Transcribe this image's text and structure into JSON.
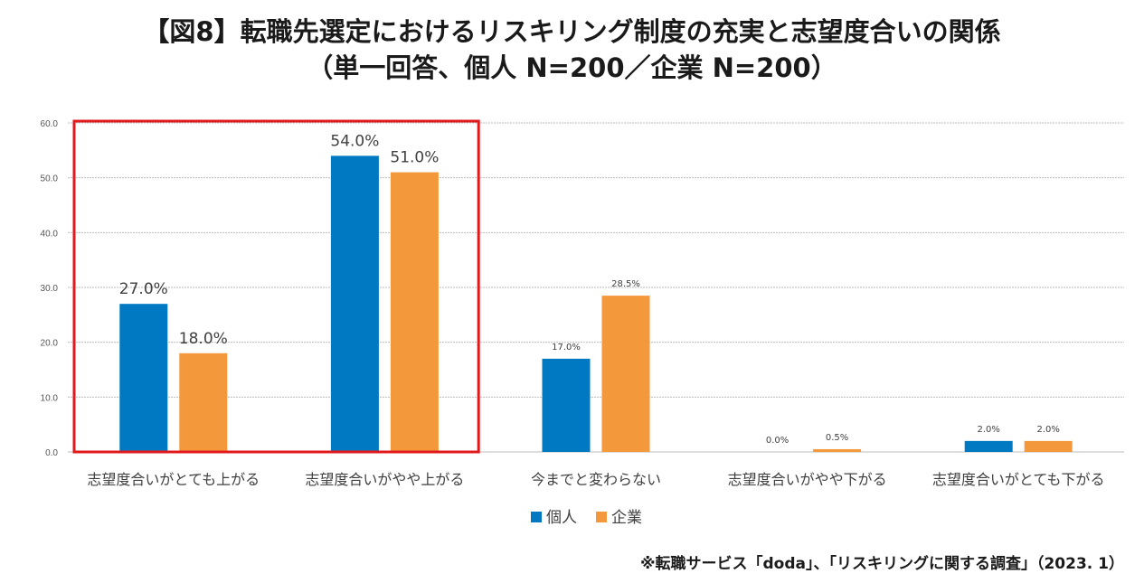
{
  "title_line1": "【図8】転職先選定におけるリスキリング制度の充実と志望度合いの関係",
  "title_line2": "（単一回答、個人 N=200／企業 N=200）",
  "source": "※転職サービス「doda」、「リスキリングに関する調査」（2023. 1）",
  "colors": {
    "individual": "#0079C2",
    "company": "#F4993B",
    "highlight": "#E0191C",
    "grid": "#BDBDBD"
  },
  "chart_data": {
    "type": "bar",
    "categories": [
      "志望度合いがとても上がる",
      "志望度合いがやや上がる",
      "今までと変わらない",
      "志望度合いがやや下がる",
      "志望度合いがとても下がる"
    ],
    "series": [
      {
        "name": "個人",
        "values": [
          27.0,
          54.0,
          17.0,
          0.0,
          2.0
        ],
        "labels": [
          "27.0%",
          "54.0%",
          "17.0%",
          "0.0%",
          "2.0%"
        ]
      },
      {
        "name": "企業",
        "values": [
          18.0,
          51.0,
          28.5,
          0.5,
          2.0
        ],
        "labels": [
          "18.0%",
          "51.0%",
          "28.5%",
          "0.5%",
          "2.0%"
        ]
      }
    ],
    "yticks": [
      "0.0",
      "10.0",
      "20.0",
      "30.0",
      "40.0",
      "50.0",
      "60.0"
    ],
    "ylim": [
      0,
      60
    ],
    "legend_position": "bottom",
    "highlighted_categories": [
      0,
      1
    ]
  }
}
